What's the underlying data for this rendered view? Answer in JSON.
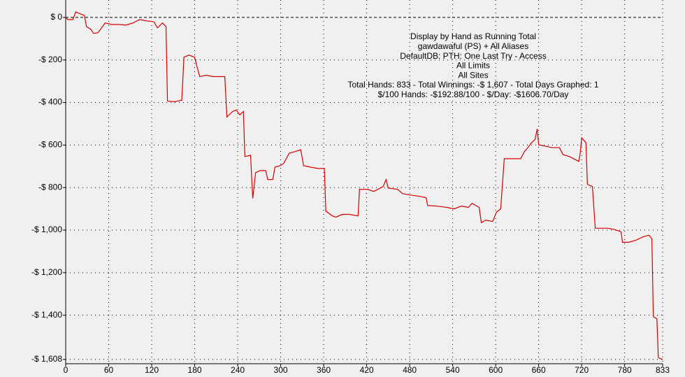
{
  "chart_data": {
    "type": "line",
    "annotation": [
      "Display by Hand as Running Total",
      "gawdawaful (PS) + All Aliases",
      "DefaultDB: PTH: One Last Try - Access",
      "All Limits",
      "All Sites",
      "Total Hands: 833 - Total Winnings: -$ 1,607 - Total Days Graphed: 1",
      "$/100 Hands: -$192.88/100 - $/Day: -$1606.70/Day"
    ],
    "x": [
      0,
      3,
      10,
      14,
      18,
      21,
      26,
      29,
      35,
      39,
      45,
      50,
      55,
      64,
      74,
      84,
      94,
      103,
      113,
      123,
      128,
      135,
      140,
      142,
      152,
      162,
      165,
      172,
      180,
      183,
      187,
      196,
      206,
      215,
      222,
      225,
      233,
      238,
      243,
      248,
      250,
      258,
      261,
      265,
      271,
      279,
      282,
      289,
      292,
      299,
      304,
      312,
      320,
      328,
      332,
      342,
      352,
      361,
      363,
      372,
      377,
      386,
      396,
      408,
      410,
      421,
      430,
      443,
      447,
      450,
      463,
      470,
      479,
      494,
      503,
      505,
      518,
      532,
      542,
      552,
      562,
      567,
      577,
      580,
      586,
      596,
      601,
      607,
      612,
      625,
      635,
      640,
      645,
      650,
      655,
      658,
      660,
      669,
      679,
      689,
      694,
      703,
      716,
      718,
      720,
      726,
      728,
      735,
      739,
      747,
      757,
      767,
      775,
      777,
      786,
      796,
      806,
      814,
      818,
      820,
      825,
      827,
      833
    ],
    "series": [
      {
        "name": "gawdawaful (PS) + All Aliases",
        "color": "#d40000",
        "values": [
          0,
          -10,
          -10,
          26,
          20,
          16,
          10,
          -43,
          -56,
          -75,
          -72,
          -49,
          -26,
          -33,
          -33,
          -36,
          -26,
          -10,
          -16,
          -20,
          -49,
          -26,
          -43,
          -393,
          -396,
          -389,
          -187,
          -177,
          -187,
          -229,
          -278,
          -272,
          -278,
          -278,
          -278,
          -468,
          -442,
          -435,
          -458,
          -442,
          -654,
          -648,
          -851,
          -730,
          -720,
          -720,
          -762,
          -762,
          -704,
          -697,
          -687,
          -638,
          -631,
          -622,
          -697,
          -704,
          -710,
          -710,
          -910,
          -933,
          -939,
          -926,
          -926,
          -933,
          -808,
          -808,
          -818,
          -795,
          -762,
          -802,
          -808,
          -828,
          -834,
          -841,
          -848,
          -884,
          -887,
          -893,
          -900,
          -887,
          -893,
          -874,
          -893,
          -965,
          -953,
          -959,
          -916,
          -900,
          -664,
          -664,
          -664,
          -631,
          -612,
          -589,
          -573,
          -524,
          -599,
          -605,
          -612,
          -612,
          -645,
          -654,
          -677,
          -638,
          -566,
          -589,
          -785,
          -795,
          -991,
          -991,
          -991,
          -998,
          -1008,
          -1057,
          -1057,
          -1047,
          -1031,
          -1024,
          -1041,
          -1407,
          -1417,
          -1600,
          -1608
        ]
      }
    ],
    "xlim": [
      0,
      833
    ],
    "xticks": [
      0,
      60,
      120,
      180,
      240,
      300,
      360,
      420,
      480,
      540,
      600,
      660,
      720,
      780,
      833
    ],
    "ylim": [
      -1628,
      82
    ],
    "yticks": [
      {
        "value": 0,
        "label": "$ 0"
      },
      {
        "value": -200,
        "label": "-$ 200"
      },
      {
        "value": -400,
        "label": "-$ 400"
      },
      {
        "value": -600,
        "label": "-$ 600"
      },
      {
        "value": -800,
        "label": "-$ 800"
      },
      {
        "value": -1000,
        "label": "-$ 1,000"
      },
      {
        "value": -1200,
        "label": "-$ 1,200"
      },
      {
        "value": -1400,
        "label": "-$ 1,400"
      },
      {
        "value": -1608,
        "label": "-$ 1,608"
      }
    ],
    "grid": true
  }
}
